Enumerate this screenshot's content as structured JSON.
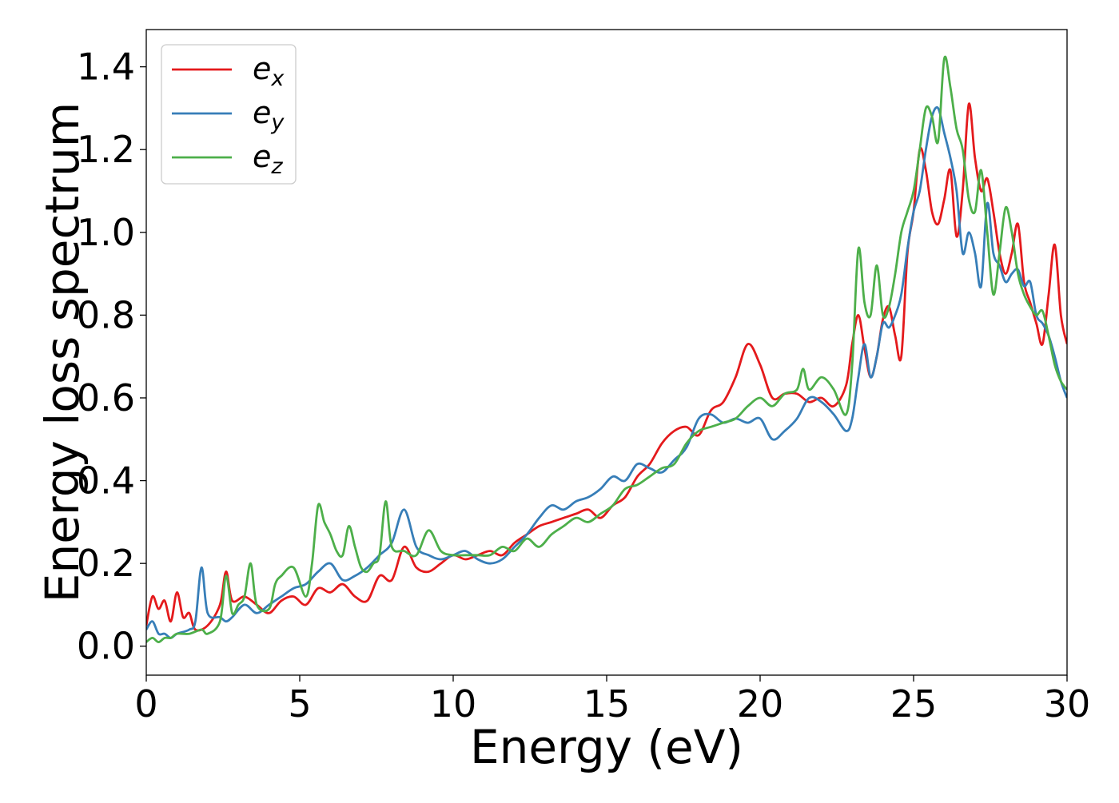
{
  "chart_data": {
    "type": "line",
    "title": "",
    "xlabel": "Energy (eV)",
    "ylabel": "Energy loss spectrum",
    "xlim": [
      0,
      30
    ],
    "ylim": [
      -0.07,
      1.49
    ],
    "xticks": [
      0,
      5,
      10,
      15,
      20,
      25,
      30
    ],
    "xtick_labels": [
      "0",
      "5",
      "10",
      "15",
      "20",
      "25",
      "30"
    ],
    "yticks": [
      0.0,
      0.2,
      0.4,
      0.6,
      0.8,
      1.0,
      1.2,
      1.4
    ],
    "ytick_labels": [
      "0.0",
      "0.2",
      "0.4",
      "0.6",
      "0.8",
      "1.0",
      "1.2",
      "1.4"
    ],
    "grid": false,
    "legend_position": "top-left",
    "series": [
      {
        "name": "e",
        "subscript": "x",
        "color": "#e41a1c",
        "x": [
          0,
          0.2,
          0.4,
          0.6,
          0.8,
          1.0,
          1.2,
          1.4,
          1.6,
          2.0,
          2.4,
          2.6,
          2.8,
          3.2,
          3.6,
          4.0,
          4.4,
          4.8,
          5.2,
          5.6,
          6.0,
          6.4,
          6.8,
          7.2,
          7.6,
          8.0,
          8.4,
          8.8,
          9.2,
          9.6,
          10.0,
          10.4,
          10.8,
          11.2,
          11.6,
          12.0,
          12.4,
          12.8,
          13.2,
          13.6,
          14.0,
          14.4,
          14.8,
          15.2,
          15.6,
          16.0,
          16.4,
          16.8,
          17.2,
          17.6,
          18.0,
          18.4,
          18.8,
          19.2,
          19.6,
          20.0,
          20.4,
          20.8,
          21.2,
          21.6,
          22.0,
          22.4,
          22.8,
          23.0,
          23.2,
          23.4,
          23.6,
          23.8,
          24.0,
          24.2,
          24.4,
          24.6,
          24.8,
          25.0,
          25.2,
          25.4,
          25.6,
          25.8,
          26.0,
          26.2,
          26.4,
          26.6,
          26.8,
          27.0,
          27.2,
          27.4,
          27.6,
          27.8,
          28.0,
          28.2,
          28.4,
          28.6,
          28.8,
          29.0,
          29.2,
          29.4,
          29.6,
          29.8,
          30.0
        ],
        "y": [
          0.05,
          0.12,
          0.09,
          0.11,
          0.06,
          0.13,
          0.07,
          0.08,
          0.04,
          0.05,
          0.1,
          0.18,
          0.11,
          0.12,
          0.1,
          0.08,
          0.11,
          0.12,
          0.1,
          0.14,
          0.13,
          0.15,
          0.12,
          0.11,
          0.17,
          0.16,
          0.24,
          0.19,
          0.18,
          0.2,
          0.22,
          0.21,
          0.22,
          0.23,
          0.22,
          0.25,
          0.27,
          0.29,
          0.3,
          0.31,
          0.32,
          0.33,
          0.31,
          0.34,
          0.36,
          0.41,
          0.44,
          0.49,
          0.52,
          0.53,
          0.51,
          0.57,
          0.59,
          0.65,
          0.73,
          0.68,
          0.6,
          0.61,
          0.61,
          0.59,
          0.6,
          0.58,
          0.63,
          0.73,
          0.8,
          0.72,
          0.65,
          0.7,
          0.79,
          0.82,
          0.75,
          0.7,
          0.95,
          1.05,
          1.2,
          1.15,
          1.05,
          1.02,
          1.08,
          1.15,
          0.99,
          1.1,
          1.31,
          1.18,
          1.1,
          1.13,
          1.05,
          0.95,
          0.9,
          0.95,
          1.02,
          0.88,
          0.83,
          0.78,
          0.73,
          0.85,
          0.97,
          0.8,
          0.73
        ]
      },
      {
        "name": "e",
        "subscript": "y",
        "color": "#377eb8",
        "x": [
          0,
          0.2,
          0.4,
          0.6,
          0.8,
          1.0,
          1.4,
          1.6,
          1.8,
          2.0,
          2.4,
          2.6,
          2.8,
          3.2,
          3.6,
          4.0,
          4.4,
          4.8,
          5.2,
          5.6,
          6.0,
          6.4,
          6.8,
          7.2,
          7.6,
          8.0,
          8.4,
          8.8,
          9.2,
          9.6,
          10.0,
          10.4,
          10.8,
          11.2,
          11.6,
          12.0,
          12.4,
          12.8,
          13.2,
          13.6,
          14.0,
          14.4,
          14.8,
          15.2,
          15.6,
          16.0,
          16.4,
          16.8,
          17.2,
          17.6,
          18.0,
          18.4,
          18.8,
          19.2,
          19.6,
          20.0,
          20.4,
          20.8,
          21.2,
          21.6,
          22.0,
          22.4,
          22.8,
          23.0,
          23.2,
          23.4,
          23.6,
          23.8,
          24.0,
          24.2,
          24.4,
          24.6,
          24.8,
          25.0,
          25.2,
          25.4,
          25.6,
          25.8,
          26.0,
          26.2,
          26.4,
          26.6,
          26.8,
          27.0,
          27.2,
          27.4,
          27.6,
          27.8,
          28.0,
          28.2,
          28.4,
          28.6,
          28.8,
          29.0,
          29.2,
          29.4,
          29.6,
          29.8,
          30.0
        ],
        "y": [
          0.04,
          0.06,
          0.03,
          0.03,
          0.02,
          0.03,
          0.04,
          0.06,
          0.19,
          0.08,
          0.07,
          0.06,
          0.07,
          0.1,
          0.08,
          0.1,
          0.12,
          0.14,
          0.15,
          0.18,
          0.2,
          0.16,
          0.17,
          0.19,
          0.22,
          0.25,
          0.33,
          0.24,
          0.22,
          0.21,
          0.22,
          0.23,
          0.21,
          0.2,
          0.21,
          0.24,
          0.27,
          0.31,
          0.34,
          0.33,
          0.35,
          0.36,
          0.38,
          0.41,
          0.4,
          0.44,
          0.43,
          0.42,
          0.45,
          0.48,
          0.55,
          0.56,
          0.54,
          0.55,
          0.54,
          0.55,
          0.5,
          0.52,
          0.55,
          0.6,
          0.59,
          0.56,
          0.52,
          0.55,
          0.65,
          0.73,
          0.65,
          0.7,
          0.78,
          0.77,
          0.8,
          0.85,
          0.96,
          1.05,
          1.1,
          1.2,
          1.28,
          1.3,
          1.24,
          1.18,
          1.1,
          0.95,
          1.0,
          0.95,
          0.87,
          1.07,
          0.95,
          0.92,
          0.88,
          0.9,
          0.91,
          0.87,
          0.88,
          0.8,
          0.78,
          0.75,
          0.7,
          0.64,
          0.6
        ]
      },
      {
        "name": "e",
        "subscript": "z",
        "color": "#4daf4a",
        "x": [
          0,
          0.2,
          0.4,
          0.6,
          0.8,
          1.0,
          1.4,
          1.8,
          2.0,
          2.4,
          2.6,
          2.8,
          3.0,
          3.2,
          3.4,
          3.6,
          4.0,
          4.2,
          4.4,
          4.8,
          5.2,
          5.4,
          5.6,
          5.8,
          6.0,
          6.2,
          6.4,
          6.6,
          6.8,
          7.0,
          7.2,
          7.4,
          7.6,
          7.8,
          8.0,
          8.4,
          8.8,
          9.2,
          9.6,
          10.0,
          10.4,
          10.8,
          11.2,
          11.6,
          12.0,
          12.4,
          12.8,
          13.2,
          13.6,
          14.0,
          14.4,
          14.8,
          15.2,
          15.6,
          16.0,
          16.4,
          16.8,
          17.2,
          17.6,
          18.0,
          18.4,
          18.8,
          19.2,
          19.6,
          20.0,
          20.4,
          20.8,
          21.2,
          21.4,
          21.6,
          22.0,
          22.4,
          22.8,
          23.0,
          23.2,
          23.4,
          23.6,
          23.8,
          24.0,
          24.2,
          24.4,
          24.6,
          24.8,
          25.0,
          25.2,
          25.4,
          25.6,
          25.8,
          26.0,
          26.2,
          26.4,
          26.6,
          26.8,
          27.0,
          27.2,
          27.4,
          27.6,
          27.8,
          28.0,
          28.2,
          28.4,
          28.6,
          28.8,
          29.0,
          29.2,
          29.4,
          29.6,
          29.8,
          30.0
        ],
        "y": [
          0.01,
          0.02,
          0.01,
          0.02,
          0.02,
          0.03,
          0.03,
          0.04,
          0.03,
          0.06,
          0.17,
          0.08,
          0.1,
          0.12,
          0.2,
          0.1,
          0.09,
          0.15,
          0.17,
          0.19,
          0.12,
          0.2,
          0.34,
          0.3,
          0.27,
          0.23,
          0.22,
          0.29,
          0.24,
          0.19,
          0.18,
          0.2,
          0.22,
          0.35,
          0.24,
          0.23,
          0.22,
          0.28,
          0.23,
          0.22,
          0.22,
          0.22,
          0.22,
          0.24,
          0.23,
          0.26,
          0.24,
          0.27,
          0.29,
          0.31,
          0.3,
          0.32,
          0.34,
          0.38,
          0.39,
          0.41,
          0.43,
          0.44,
          0.49,
          0.52,
          0.53,
          0.54,
          0.55,
          0.58,
          0.6,
          0.58,
          0.61,
          0.62,
          0.67,
          0.62,
          0.65,
          0.62,
          0.56,
          0.68,
          0.96,
          0.83,
          0.8,
          0.92,
          0.8,
          0.82,
          0.9,
          1.0,
          1.05,
          1.1,
          1.2,
          1.3,
          1.28,
          1.22,
          1.42,
          1.35,
          1.25,
          1.2,
          1.08,
          1.05,
          1.15,
          1.0,
          0.85,
          0.95,
          1.06,
          1.0,
          0.9,
          0.85,
          0.82,
          0.8,
          0.81,
          0.75,
          0.68,
          0.64,
          0.62
        ]
      }
    ]
  }
}
